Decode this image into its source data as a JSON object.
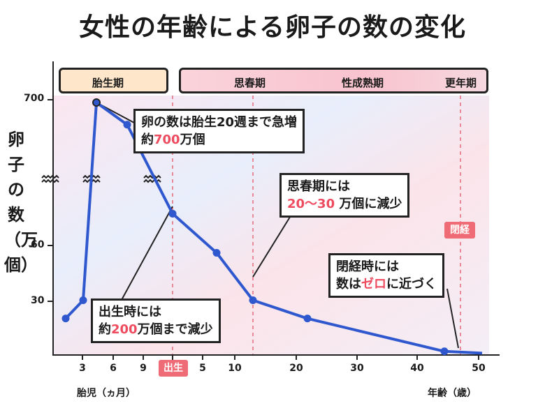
{
  "title": "女性の年齢による卵子の数の変化",
  "ylabel": "卵子の数（万個）",
  "phases": [
    "胎生期",
    "思春期",
    "性成熟期",
    "更年期"
  ],
  "y_ticks": [
    "700",
    "60",
    "30"
  ],
  "x_ticks_fetal": [
    "3",
    "6",
    "9"
  ],
  "birth_label": "出生",
  "x_ticks_age": [
    "5",
    "10",
    "20",
    "30",
    "40",
    "50"
  ],
  "x_label_fetal": "胎児（ヵ月）",
  "x_label_age": "年齢（歳）",
  "menopause_badge": "閉経",
  "callouts": {
    "peak": {
      "line1": "卵の数は胎生20週まで急増",
      "pre": "約",
      "hl": "700",
      "post": "万個"
    },
    "puberty": {
      "line1": "思春期には",
      "hl": "20〜30",
      "post": " 万個に減少"
    },
    "birth": {
      "line1": "出生時には",
      "pre": "約",
      "hl": "200",
      "post": "万個まで減少"
    },
    "menopause": {
      "line1": "閉経時には",
      "pre": "数は",
      "hl": "ゼロ",
      "post": "に近づく"
    }
  },
  "colors": {
    "line": "#2f58cf",
    "highlight": "#ee4b5f",
    "phase_fetal": "#fde6c9",
    "phase_rest": "#f9c9d3"
  },
  "chart_data": {
    "type": "line",
    "title": "女性の年齢による卵子の数の変化",
    "ylabel": "卵子の数（万個）",
    "xlabel": "胎児（ヵ月） / 年齢（歳）",
    "axis_note": "y-axis is broken; x-axis combines fetal months and age in years",
    "x": [
      "胎児2ヵ月",
      "胎児3ヵ月",
      "胎児4ヵ月",
      "胎児7ヵ月",
      "出生",
      "7歳",
      "13歳",
      "22歳",
      "45歳",
      "51歳"
    ],
    "values": [
      20,
      30,
      700,
      600,
      200,
      56,
      30,
      20,
      2,
      1
    ]
  }
}
